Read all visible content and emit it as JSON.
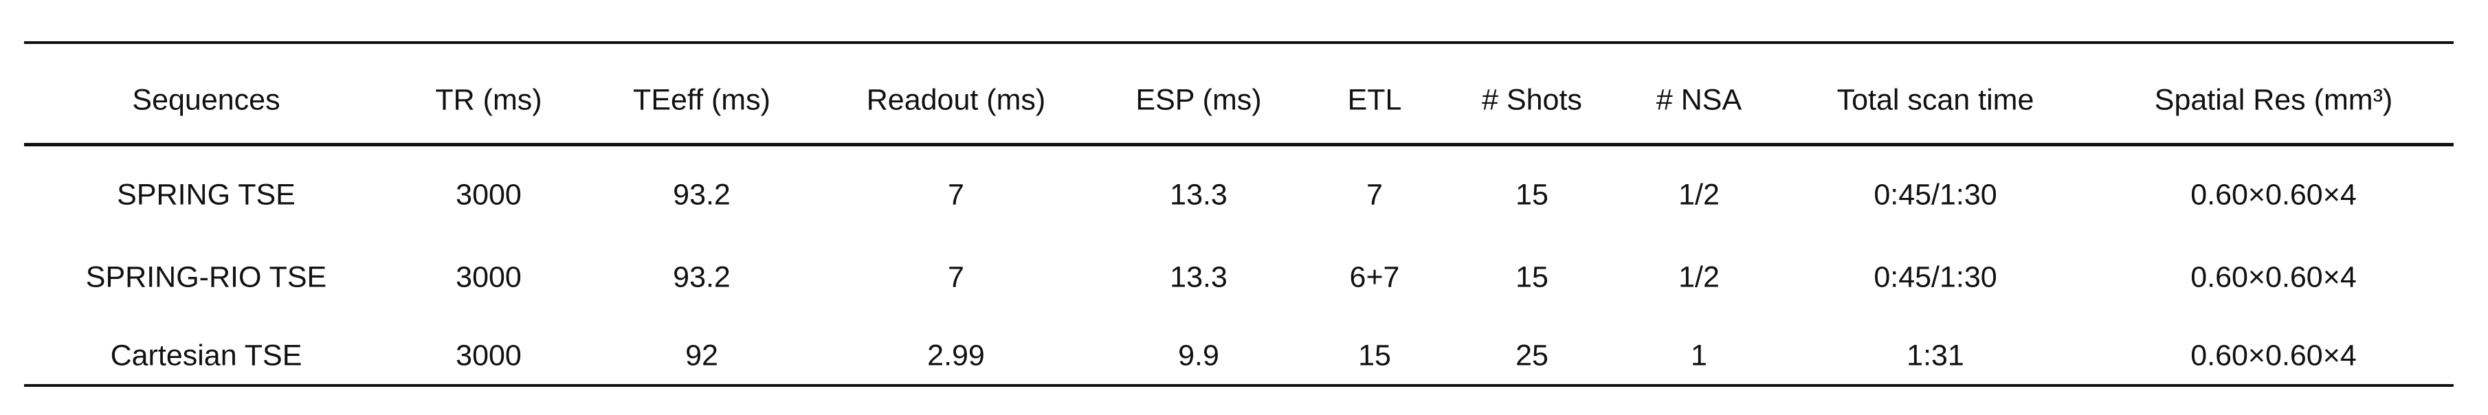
{
  "table": {
    "headers": [
      "Sequences",
      "TR (ms)",
      "TEeff (ms)",
      "Readout (ms)",
      "ESP (ms)",
      "ETL",
      "# Shots",
      "# NSA",
      "Total scan time",
      "Spatial Res (mm³)"
    ],
    "rows": [
      [
        "SPRING TSE",
        "3000",
        "93.2",
        "7",
        "13.3",
        "7",
        "15",
        "1/2",
        "0:45/1:30",
        "0.60×0.60×4"
      ],
      [
        "SPRING-RIO TSE",
        "3000",
        "93.2",
        "7",
        "13.3",
        "6+7",
        "15",
        "1/2",
        "0:45/1:30",
        "0.60×0.60×4"
      ],
      [
        "Cartesian TSE",
        "3000",
        "92",
        "2.99",
        "9.9",
        "15",
        "25",
        "1",
        "1:31",
        "0.60×0.60×4"
      ]
    ]
  }
}
